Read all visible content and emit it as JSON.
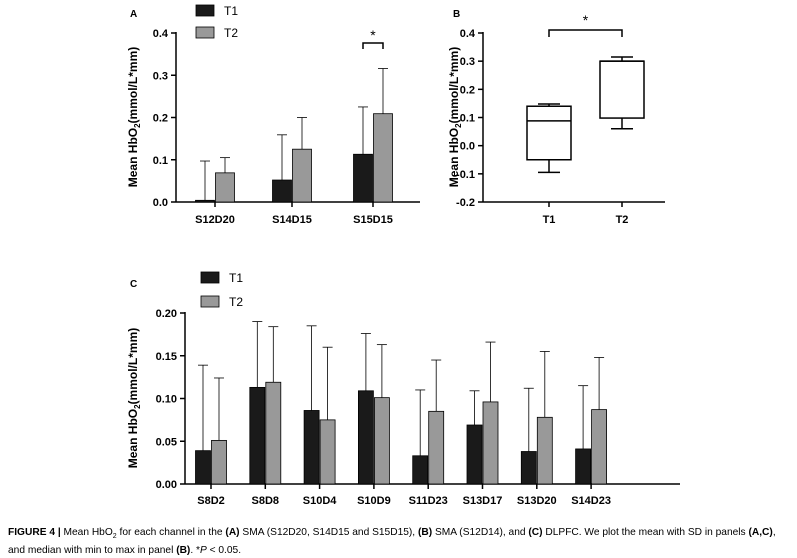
{
  "chart_data": [
    {
      "panel": "A",
      "type": "bar",
      "ylabel_main": "Mean HbO",
      "ylabel_sub": "2",
      "ylabel_rest": "(mmol/L*mm)",
      "ylim": [
        0,
        0.4
      ],
      "yticks": [
        "0.0",
        "0.1",
        "0.2",
        "0.3",
        "0.4"
      ],
      "categories": [
        "S12D20",
        "S14D15",
        "S15D15"
      ],
      "series": [
        {
          "name": "T1",
          "color": "#1a1a1a",
          "values": [
            0.004,
            0.052,
            0.113
          ],
          "sd": [
            0.093,
            0.107,
            0.112
          ]
        },
        {
          "name": "T2",
          "color": "#999999",
          "values": [
            0.069,
            0.125,
            0.209
          ],
          "sd": [
            0.036,
            0.075,
            0.107
          ]
        }
      ],
      "annotation": {
        "text": "*",
        "category_index": 2
      }
    },
    {
      "panel": "B",
      "type": "box",
      "ylabel_main": "Mean HbO",
      "ylabel_sub": "2",
      "ylabel_rest": "(mmol/L*mm)",
      "ylim": [
        -0.2,
        0.4
      ],
      "yticks": [
        "-0.2",
        "-0.1",
        "0.0",
        "0.1",
        "0.2",
        "0.3",
        "0.4"
      ],
      "categories": [
        "T1",
        "T2"
      ],
      "boxes": [
        {
          "min": -0.095,
          "q1": -0.05,
          "median": 0.088,
          "q3": 0.14,
          "max": 0.148
        },
        {
          "min": 0.06,
          "q1": 0.098,
          "median": 0.3,
          "q3": 0.3,
          "max": 0.315
        }
      ],
      "annotation": {
        "text": "*"
      }
    },
    {
      "panel": "C",
      "type": "bar",
      "ylabel_main": "Mean HbO",
      "ylabel_sub": "2",
      "ylabel_rest": "(mmol/L*mm)",
      "ylim": [
        0,
        0.2
      ],
      "yticks": [
        "0.00",
        "0.05",
        "0.10",
        "0.15",
        "0.20"
      ],
      "categories": [
        "S8D2",
        "S8D8",
        "S10D4",
        "S10D9",
        "S11D23",
        "S13D17",
        "S13D20",
        "S14D23"
      ],
      "series": [
        {
          "name": "T1",
          "color": "#1a1a1a",
          "values": [
            0.039,
            0.113,
            0.086,
            0.109,
            0.033,
            0.069,
            0.038,
            0.041
          ],
          "sd": [
            0.1,
            0.077,
            0.099,
            0.067,
            0.077,
            0.04,
            0.074,
            0.074
          ]
        },
        {
          "name": "T2",
          "color": "#999999",
          "values": [
            0.051,
            0.119,
            0.075,
            0.101,
            0.085,
            0.096,
            0.078,
            0.087
          ],
          "sd": [
            0.073,
            0.065,
            0.085,
            0.062,
            0.06,
            0.07,
            0.077,
            0.061
          ]
        }
      ]
    }
  ],
  "caption": {
    "lead": "FIGURE 4 |",
    "t1": " Mean HbO",
    "t1_sub": "2",
    "t2": " for each channel in the ",
    "a": "(A)",
    "t3": " SMA (S12D20, S14D15 and S15D15), ",
    "b": "(B)",
    "t4": " SMA (S12D14), and ",
    "c": "(C)",
    "t5": " DLPFC. We plot the mean with SD in panels ",
    "ac": "(A,C)",
    "t6": ", and median with min to max in panel ",
    "b2": "(B)",
    "t7": ". *",
    "p": "P",
    "t8": " < 0.05."
  }
}
